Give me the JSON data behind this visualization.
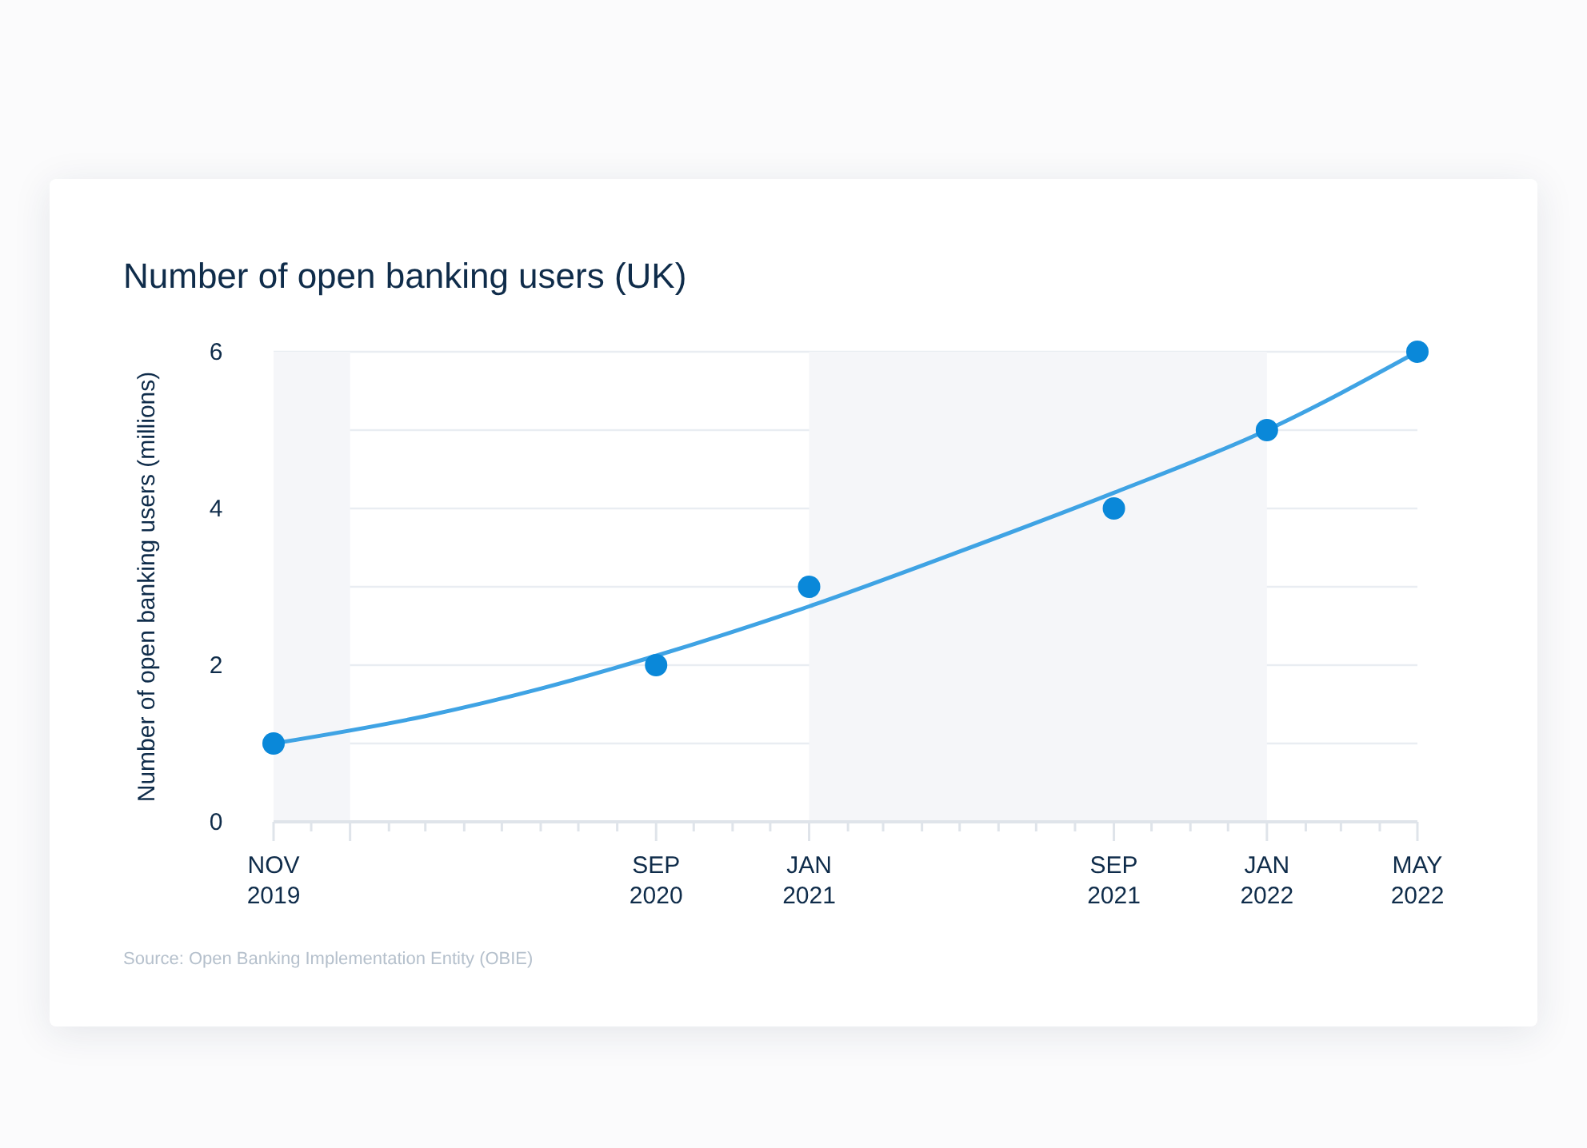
{
  "chart_data": {
    "type": "scatter",
    "title": "Number of open banking users (UK)",
    "ylabel": "Number of open banking users (millions)",
    "xlim": [
      "2019-11",
      "2022-05"
    ],
    "ylim": [
      0,
      6
    ],
    "xticks": [
      {
        "value": "2019-11",
        "label": "NOV 2019"
      },
      {
        "value": "2019-12",
        "label": null
      },
      {
        "value": "2020-01",
        "label": null
      },
      {
        "value": "2020-02",
        "label": null
      },
      {
        "value": "2020-03",
        "label": null
      },
      {
        "value": "2020-04",
        "label": null
      },
      {
        "value": "2020-05",
        "label": null
      },
      {
        "value": "2020-06",
        "label": null
      },
      {
        "value": "2020-07",
        "label": null
      },
      {
        "value": "2020-08",
        "label": null
      },
      {
        "value": "2020-09",
        "label": "SEP 2020"
      },
      {
        "value": "2020-10",
        "label": null
      },
      {
        "value": "2020-11",
        "label": null
      },
      {
        "value": "2020-12",
        "label": null
      },
      {
        "value": "2021-01",
        "label": "JAN 2021"
      },
      {
        "value": "2021-02",
        "label": null
      },
      {
        "value": "2021-03",
        "label": null
      },
      {
        "value": "2021-04",
        "label": null
      },
      {
        "value": "2021-05",
        "label": null
      },
      {
        "value": "2021-06",
        "label": null
      },
      {
        "value": "2021-07",
        "label": null
      },
      {
        "value": "2021-08",
        "label": null
      },
      {
        "value": "2021-09",
        "label": "SEP 2021"
      },
      {
        "value": "2021-10",
        "label": null
      },
      {
        "value": "2021-11",
        "label": null
      },
      {
        "value": "2021-12",
        "label": null
      },
      {
        "value": "2022-01",
        "label": "JAN 2022"
      },
      {
        "value": "2022-02",
        "label": null
      },
      {
        "value": "2022-03",
        "label": null
      },
      {
        "value": "2022-04",
        "label": null
      },
      {
        "value": "2022-05",
        "label": "MAY 2022"
      }
    ],
    "yticks": [
      0,
      {
        "value": 1,
        "label": null
      },
      2,
      {
        "value": 3,
        "label": null
      },
      4,
      {
        "value": 5,
        "label": null
      },
      6
    ],
    "grid": "y",
    "series": [
      {
        "color": "#0a88d9",
        "marker": "circle",
        "x": [
          "2019-11",
          "2020-09",
          "2021-01",
          "2021-09",
          "2022-01",
          "2022-05"
        ],
        "values": [
          1,
          2,
          3,
          4,
          5,
          6
        ]
      },
      {
        "type": "line",
        "color": "#3fa3e4",
        "marker": "none",
        "x": [
          "2019-11",
          "2020-03",
          "2020-06",
          "2020-09",
          "2021-01",
          "2021-05",
          "2021-09",
          "2022-01",
          "2022-05"
        ],
        "values": [
          1.0,
          1.35,
          1.7,
          2.12,
          2.75,
          3.45,
          4.2,
          5.0,
          6.0
        ]
      }
    ],
    "bands": [
      {
        "axis": "x",
        "from": "2019-11",
        "to": "2020-01",
        "color": "#f5f6f9"
      },
      {
        "axis": "x",
        "from": "2021-01",
        "to": "2022-01",
        "color": "#f5f6f9"
      }
    ],
    "annotations": [
      "Source: Open Banking Implementation Entity (OBIE)"
    ]
  }
}
